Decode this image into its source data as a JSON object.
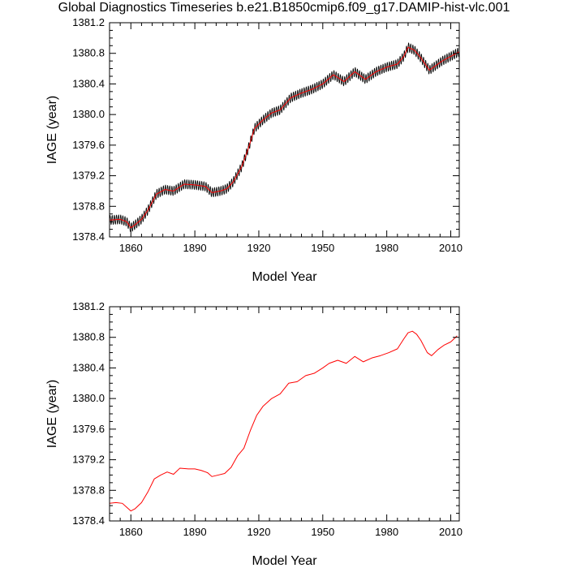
{
  "title": "Global Diagnostics Timeseries b.e21.B1850cmip6.f09_g17.DAMIP-hist-vlc.001",
  "chart_data": [
    {
      "type": "line",
      "xlabel": "Model Year",
      "ylabel": "IAGE (year)",
      "xlim": [
        1850,
        2014
      ],
      "ylim": [
        1378.4,
        1381.2
      ],
      "xticks": [
        1860,
        1890,
        1920,
        1950,
        1980,
        2010
      ],
      "yticks": [
        1378.4,
        1378.8,
        1379.2,
        1379.6,
        1380.0,
        1380.4,
        1380.8,
        1381.2
      ],
      "grid": false,
      "series": [
        {
          "kind": "monthly",
          "color": "#000000",
          "seasonal_amplitude": 0.06,
          "x": [
            1850,
            1855,
            1858,
            1860,
            1862,
            1865,
            1868,
            1872,
            1876,
            1880,
            1885,
            1890,
            1895,
            1898,
            1902,
            1905,
            1908,
            1912,
            1915,
            1918,
            1922,
            1926,
            1930,
            1935,
            1940,
            1945,
            1950,
            1955,
            1960,
            1965,
            1970,
            1975,
            1980,
            1985,
            1988,
            1990,
            1993,
            1996,
            2000,
            2003,
            2006,
            2010,
            2014
          ],
          "y": [
            1378.62,
            1378.63,
            1378.6,
            1378.52,
            1378.56,
            1378.63,
            1378.75,
            1378.96,
            1379.02,
            1379.0,
            1379.09,
            1379.08,
            1379.06,
            1378.98,
            1379.0,
            1379.03,
            1379.12,
            1379.32,
            1379.55,
            1379.82,
            1379.93,
            1380.02,
            1380.06,
            1380.22,
            1380.28,
            1380.33,
            1380.4,
            1380.52,
            1380.43,
            1380.56,
            1380.46,
            1380.56,
            1380.62,
            1380.66,
            1380.76,
            1380.88,
            1380.84,
            1380.74,
            1380.58,
            1380.64,
            1380.7,
            1380.76,
            1380.82
          ]
        },
        {
          "kind": "running_mean",
          "color": "#ff0000",
          "x": [
            1850,
            1855,
            1858,
            1860,
            1862,
            1865,
            1868,
            1872,
            1876,
            1880,
            1885,
            1890,
            1895,
            1898,
            1902,
            1905,
            1908,
            1912,
            1915,
            1918,
            1922,
            1926,
            1930,
            1935,
            1940,
            1945,
            1950,
            1955,
            1960,
            1965,
            1970,
            1975,
            1980,
            1985,
            1988,
            1990,
            1993,
            1996,
            2000,
            2003,
            2006,
            2010,
            2014
          ],
          "y": [
            1378.62,
            1378.63,
            1378.6,
            1378.52,
            1378.56,
            1378.63,
            1378.75,
            1378.96,
            1379.02,
            1379.0,
            1379.09,
            1379.08,
            1379.06,
            1378.98,
            1379.0,
            1379.03,
            1379.12,
            1379.32,
            1379.55,
            1379.82,
            1379.93,
            1380.02,
            1380.06,
            1380.22,
            1380.28,
            1380.33,
            1380.4,
            1380.52,
            1380.43,
            1380.56,
            1380.46,
            1380.56,
            1380.62,
            1380.66,
            1380.76,
            1380.88,
            1380.84,
            1380.74,
            1380.58,
            1380.64,
            1380.7,
            1380.76,
            1380.82
          ]
        }
      ]
    },
    {
      "type": "line",
      "xlabel": "Model Year",
      "ylabel": "IAGE (year)",
      "xlim": [
        1850,
        2014
      ],
      "ylim": [
        1378.4,
        1381.2
      ],
      "xticks": [
        1860,
        1890,
        1920,
        1950,
        1980,
        2010
      ],
      "yticks": [
        1378.4,
        1378.8,
        1379.2,
        1379.6,
        1380.0,
        1380.4,
        1380.8,
        1381.2
      ],
      "grid": false,
      "series": [
        {
          "kind": "annual_mean",
          "color": "#ff0000",
          "x": [
            1850,
            1853,
            1856,
            1858,
            1860,
            1862,
            1865,
            1868,
            1871,
            1874,
            1877,
            1880,
            1883,
            1887,
            1890,
            1893,
            1896,
            1898,
            1901,
            1904,
            1907,
            1910,
            1913,
            1916,
            1919,
            1922,
            1926,
            1930,
            1934,
            1938,
            1942,
            1946,
            1950,
            1953,
            1957,
            1961,
            1965,
            1969,
            1973,
            1977,
            1981,
            1985,
            1988,
            1990,
            1992,
            1994,
            1996,
            1999,
            2001,
            2004,
            2007,
            2010,
            2013
          ],
          "y": [
            1378.63,
            1378.64,
            1378.63,
            1378.58,
            1378.53,
            1378.56,
            1378.64,
            1378.78,
            1378.95,
            1379.0,
            1379.04,
            1379.01,
            1379.09,
            1379.08,
            1379.08,
            1379.06,
            1379.03,
            1378.98,
            1379.0,
            1379.02,
            1379.1,
            1379.25,
            1379.35,
            1379.58,
            1379.78,
            1379.9,
            1380.0,
            1380.06,
            1380.2,
            1380.22,
            1380.3,
            1380.33,
            1380.4,
            1380.46,
            1380.5,
            1380.46,
            1380.55,
            1380.48,
            1380.53,
            1380.56,
            1380.6,
            1380.65,
            1380.78,
            1380.86,
            1380.88,
            1380.84,
            1380.76,
            1380.6,
            1380.56,
            1380.64,
            1380.7,
            1380.74,
            1380.82
          ]
        }
      ]
    }
  ]
}
